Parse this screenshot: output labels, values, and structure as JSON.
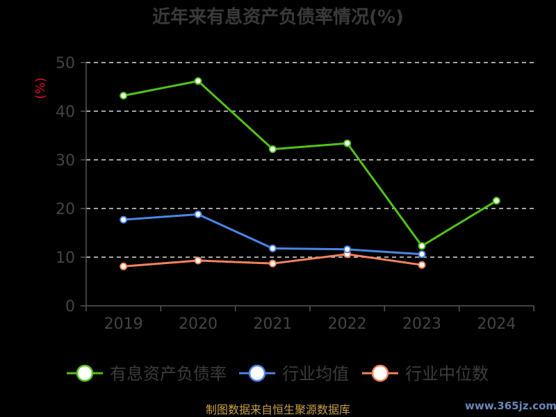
{
  "chart_data": {
    "type": "line",
    "title": "近年来有息资产负债率情况(%)",
    "ylabel": "(%)",
    "xlabel": "",
    "categories": [
      "2019",
      "2020",
      "2021",
      "2022",
      "2023",
      "2024"
    ],
    "ylim": [
      0,
      50
    ],
    "yticks": [
      0,
      10,
      20,
      30,
      40,
      50
    ],
    "grid": true,
    "legend_position": "bottom",
    "series": [
      {
        "name": "有息资产负债率",
        "color": "#52c41a",
        "values": [
          43.2,
          46.2,
          32.2,
          33.4,
          12.3,
          21.6
        ]
      },
      {
        "name": "行业均值",
        "color": "#4a86e8",
        "values": [
          17.7,
          18.8,
          11.8,
          11.6,
          10.6,
          null
        ]
      },
      {
        "name": "行业中位数",
        "color": "#f4845f",
        "values": [
          8.1,
          9.3,
          8.7,
          10.6,
          8.4,
          null
        ]
      }
    ]
  },
  "footer": {
    "source": "制图数据来自恒生聚源数据库",
    "watermark": "www.365jz.com"
  }
}
